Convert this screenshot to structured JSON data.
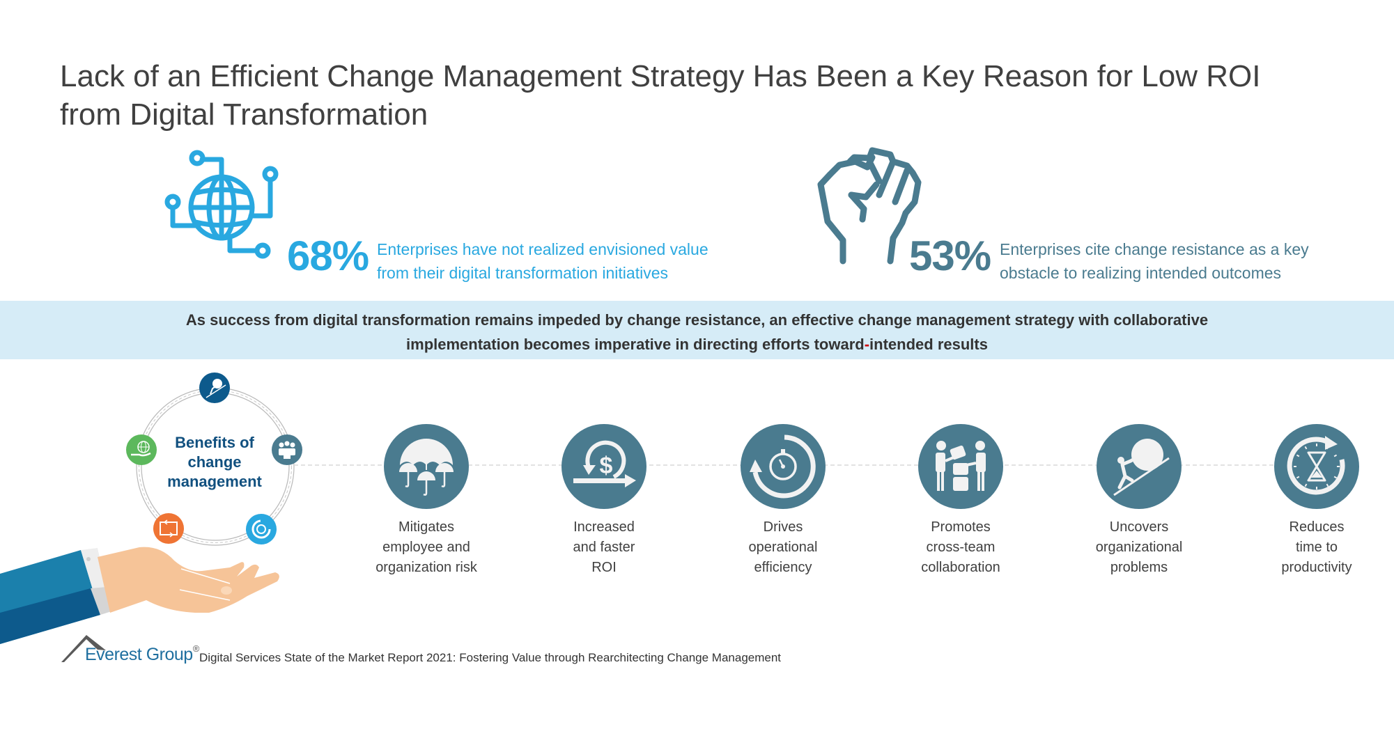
{
  "title": {
    "line1": "Lack of an Efficient Change Management Strategy Has Been a Key Reason for Low ROI",
    "line2": "from Digital Transformation"
  },
  "stats": [
    {
      "icon": "globe-network-icon",
      "value": "68%",
      "description_line1": "Enterprises have not realized envisioned value",
      "description_line2": "from their digital transformation initiatives",
      "color": "#29a8e0"
    },
    {
      "icon": "fist-icon",
      "value": "53%",
      "description_line1": "Enterprises cite change resistance as a key",
      "description_line2": "obstacle to realizing intended outcomes",
      "color": "#4a7b8f"
    }
  ],
  "banner": {
    "line1": "As success from digital transformation remains impeded by change resistance, an effective change management strategy with collaborative",
    "line2_part1": "implementation becomes imperative in directing efforts toward",
    "line2_hyphen": "-",
    "line2_part2": "intended results",
    "background": "#d6ecf7"
  },
  "ring": {
    "line1": "Benefits of",
    "line2": "change",
    "line3": "management",
    "orbit_icons": [
      {
        "icon": "uphill-climb-icon",
        "color": "#0d5a8c"
      },
      {
        "icon": "team-icon",
        "color": "#4a7b8f"
      },
      {
        "icon": "stopwatch-cycle-icon",
        "color": "#29a8e0"
      },
      {
        "icon": "refresh-loop-icon",
        "color": "#ef7434"
      },
      {
        "icon": "hand-globe-icon",
        "color": "#5cb85c"
      }
    ]
  },
  "benefits": [
    {
      "icon": "umbrellas-icon",
      "line1": "Mitigates",
      "line2": "employee and",
      "line3": "organization risk"
    },
    {
      "icon": "dollar-cycle-icon",
      "line1": "Increased",
      "line2": "and faster",
      "line3": "ROI"
    },
    {
      "icon": "stopwatch-cycle-icon",
      "line1": "Drives",
      "line2": "operational",
      "line3": "efficiency"
    },
    {
      "icon": "collaboration-icon",
      "line1": "Promotes",
      "line2": "cross-team",
      "line3": "collaboration"
    },
    {
      "icon": "uphill-boulder-icon",
      "line1": "Uncovers",
      "line2": "organizational",
      "line3": "problems"
    },
    {
      "icon": "hourglass-cycle-icon",
      "line1": "Reduces",
      "line2": "time to",
      "line3": "productivity"
    }
  ],
  "benefit_circle_color": "#4a7b8f",
  "footer": {
    "brand": "Everest Group",
    "registered": "®",
    "source": "Digital Services State of the Market Report 2021: Fostering Value through Rearchitecting Change Management"
  }
}
